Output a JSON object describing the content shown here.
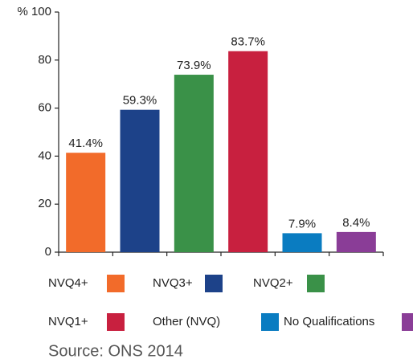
{
  "chart_data": {
    "type": "bar",
    "categories": [
      "NVQ4+",
      "NVQ3+",
      "NVQ2+",
      "NVQ1+",
      "Other (NVQ)",
      "No Qualifications"
    ],
    "values": [
      41.4,
      59.3,
      73.9,
      83.7,
      7.9,
      8.4
    ],
    "value_labels": [
      "41.4%",
      "59.3%",
      "73.9%",
      "83.7%",
      "7.9%",
      "8.4%"
    ],
    "colors": [
      "#f26b2a",
      "#1d4289",
      "#3a9148",
      "#c8203f",
      "#0a7cc1",
      "#8a3d97"
    ],
    "ylim": [
      0,
      100
    ],
    "yticks": [
      0,
      20,
      40,
      60,
      80,
      {
        "value": 100,
        "label": "% 100"
      }
    ],
    "grid": false,
    "legend": "bottom",
    "source": "Source: ONS 2014"
  }
}
